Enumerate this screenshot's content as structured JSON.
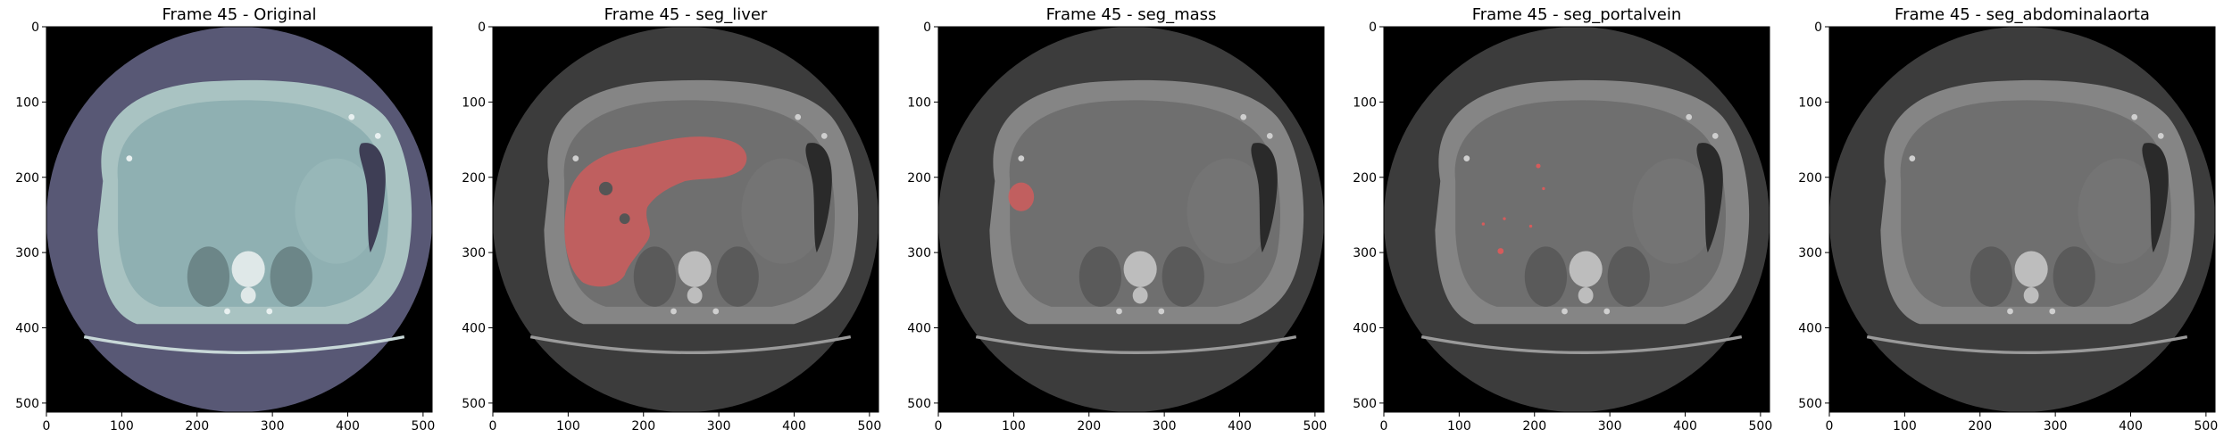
{
  "panels": [
    {
      "title": "Frame 45 - Original",
      "overlay": "none"
    },
    {
      "title": "Frame 45 - seg_liver",
      "overlay": "liver"
    },
    {
      "title": "Frame 45 - seg_mass",
      "overlay": "mass"
    },
    {
      "title": "Frame 45 - seg_portalvein",
      "overlay": "portalvein"
    },
    {
      "title": "Frame 45 - seg_abdominalaorta",
      "overlay": "none"
    }
  ],
  "axes": {
    "x_ticks": [
      "0",
      "100",
      "200",
      "300",
      "400",
      "500"
    ],
    "y_ticks": [
      "0",
      "100",
      "200",
      "300",
      "400",
      "500"
    ],
    "range": [
      0,
      512
    ]
  },
  "colors": {
    "background": "#000000",
    "original_fov": "#585875",
    "original_tissue": "#8fb0b2",
    "gray_fov": "#3c3c3c",
    "gray_tissue": "#6f6f6f",
    "mask": "#d65b5b"
  }
}
